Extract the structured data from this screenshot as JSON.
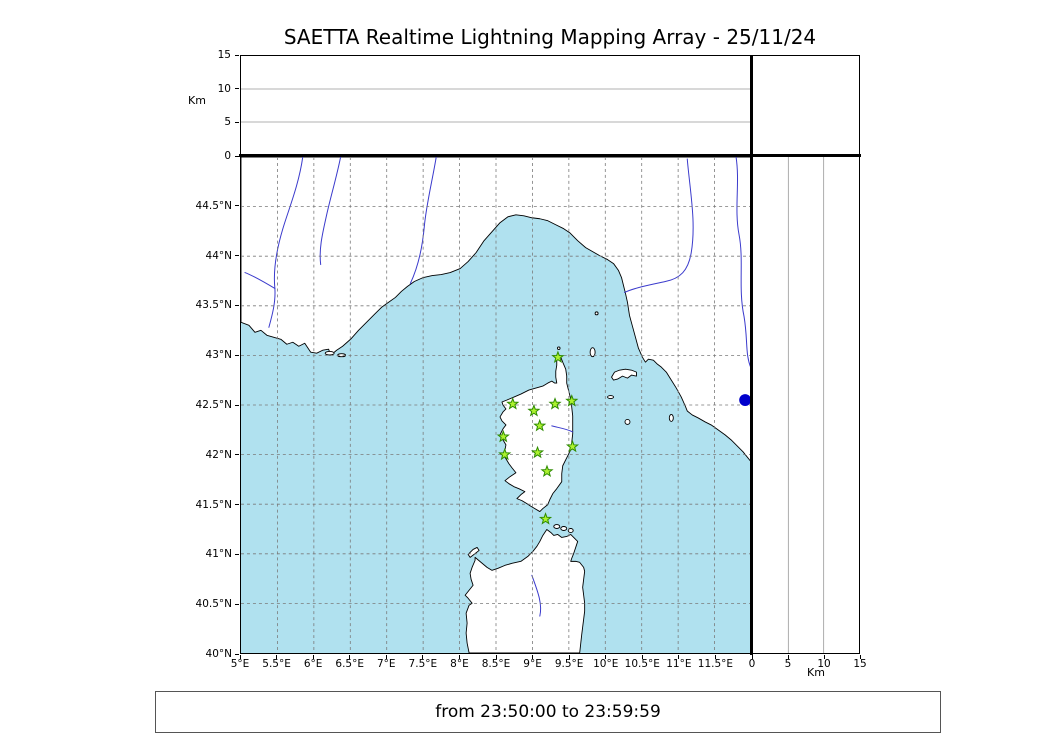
{
  "title": "SAETTA Realtime Lightning Mapping Array - 25/11/24",
  "footer": "from 23:50:00 to 23:59:59",
  "axes": {
    "lon": {
      "labels": [
        "5°E",
        "5.5°E",
        "6°E",
        "6.5°E",
        "7°E",
        "7.5°E",
        "8°E",
        "8.5°E",
        "9°E",
        "9.5°E",
        "10°E",
        "10.5°E",
        "11°E",
        "11.5°E"
      ],
      "values": [
        5,
        5.5,
        6,
        6.5,
        7,
        7.5,
        8,
        8.5,
        9,
        9.5,
        10,
        10.5,
        11,
        11.5
      ],
      "range": [
        5,
        12
      ]
    },
    "lat": {
      "labels": [
        "40°N",
        "40.5°N",
        "41°N",
        "41.5°N",
        "42°N",
        "42.5°N",
        "43°N",
        "43.5°N",
        "44°N",
        "44.5°N"
      ],
      "values": [
        40,
        40.5,
        41,
        41.5,
        42,
        42.5,
        43,
        43.5,
        44,
        44.5
      ],
      "range": [
        40,
        45
      ]
    },
    "alt": {
      "label": "Km",
      "labels": [
        "0",
        "5",
        "10",
        "15"
      ],
      "values": [
        0,
        5,
        10,
        15
      ],
      "range": [
        0,
        15
      ]
    }
  },
  "chart_data": {
    "type": "scatter",
    "title": "SAETTA Realtime Lightning Mapping Array - 25/11/24",
    "time_window": {
      "from": "23:50:00",
      "to": "23:59:59"
    },
    "panels": {
      "top": "altitude (km) vs longitude histogram panel (empty)",
      "main": "geographic map latitude vs longitude",
      "right": "latitude vs altitude (km) panel (empty)"
    },
    "lon_range_deg_e": [
      5,
      12
    ],
    "lat_range_deg_n": [
      40,
      45
    ],
    "alt_range_km": [
      0,
      15
    ],
    "grid": true,
    "legend": false,
    "stations": {
      "marker": "star",
      "positions": [
        {
          "lon": 9.35,
          "lat": 42.98
        },
        {
          "lon": 8.73,
          "lat": 42.51
        },
        {
          "lon": 9.02,
          "lat": 42.44
        },
        {
          "lon": 9.31,
          "lat": 42.51
        },
        {
          "lon": 9.54,
          "lat": 42.54
        },
        {
          "lon": 9.1,
          "lat": 42.29
        },
        {
          "lon": 8.6,
          "lat": 42.18
        },
        {
          "lon": 9.55,
          "lat": 42.08
        },
        {
          "lon": 8.62,
          "lat": 42.0
        },
        {
          "lon": 9.07,
          "lat": 42.02
        },
        {
          "lon": 9.2,
          "lat": 41.83
        },
        {
          "lon": 9.18,
          "lat": 41.35
        }
      ]
    },
    "events": [
      {
        "lon": 11.92,
        "lat": 42.55,
        "marker": "circle"
      }
    ]
  },
  "colors": {
    "sea": "#b0e1ef",
    "land": "#ffffff",
    "coast": "#000000",
    "river": "#3a3acc",
    "map_grid": "#7a7a7a",
    "panel_grid": "#999999",
    "station_fill": "#adf22f",
    "station_stroke": "#2e8b00",
    "event": "#0000cc"
  }
}
